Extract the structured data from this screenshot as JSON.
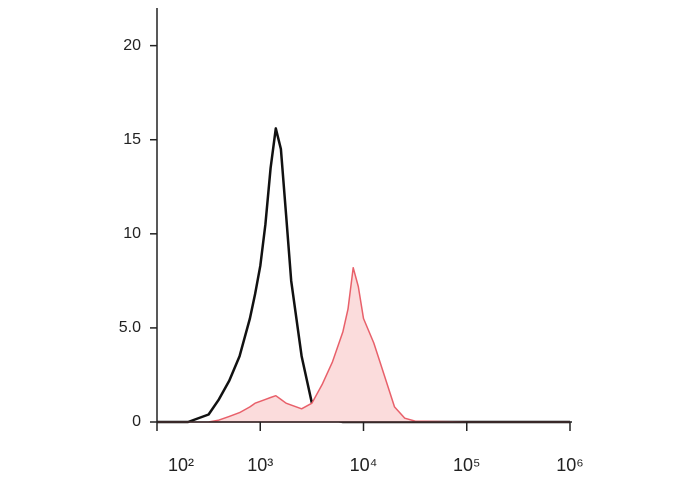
{
  "chart_data": {
    "type": "histogram-overlay",
    "xscale": "log",
    "x": [
      100,
      200,
      316,
      398,
      501,
      631,
      794,
      891,
      1000,
      1122,
      1259,
      1413,
      1585,
      1778,
      1995,
      2512,
      3162,
      3981,
      5012,
      6310,
      7079,
      7943,
      8913,
      10000,
      12589,
      15849,
      19953,
      25119,
      31623,
      100000,
      316228,
      1000000
    ],
    "series": [
      {
        "color": "#111111",
        "fill": false,
        "values": [
          0,
          0,
          0.4,
          1.2,
          2.2,
          3.5,
          5.5,
          6.8,
          8.3,
          10.5,
          13.5,
          15.6,
          14.5,
          11,
          7.5,
          3.5,
          1,
          0.3,
          0.1,
          0,
          0,
          0,
          0,
          0,
          0,
          0,
          0,
          0,
          0,
          0,
          0,
          0
        ]
      },
      {
        "color": "#e8606a",
        "fill": true,
        "values": [
          0,
          0,
          0,
          0.1,
          0.3,
          0.5,
          0.8,
          1.0,
          1.1,
          1.2,
          1.3,
          1.4,
          1.2,
          1.0,
          0.9,
          0.7,
          1.0,
          2.0,
          3.2,
          4.8,
          6.0,
          8.2,
          7.2,
          5.5,
          4.2,
          2.5,
          0.8,
          0.2,
          0.05,
          0,
          0,
          0
        ]
      }
    ],
    "xlim": [
      100,
      1000000
    ],
    "xticks": [
      {
        "value": 100,
        "label": "10²"
      },
      {
        "value": 1000,
        "label": "10³"
      },
      {
        "value": 10000,
        "label": "10⁴"
      },
      {
        "value": 100000,
        "label": "10⁵"
      },
      {
        "value": 1000000,
        "label": "10⁶"
      }
    ],
    "ylim": [
      0,
      22
    ],
    "yticks": [
      0,
      {
        "value": 5,
        "label": "5.0"
      },
      10,
      15,
      20
    ]
  }
}
